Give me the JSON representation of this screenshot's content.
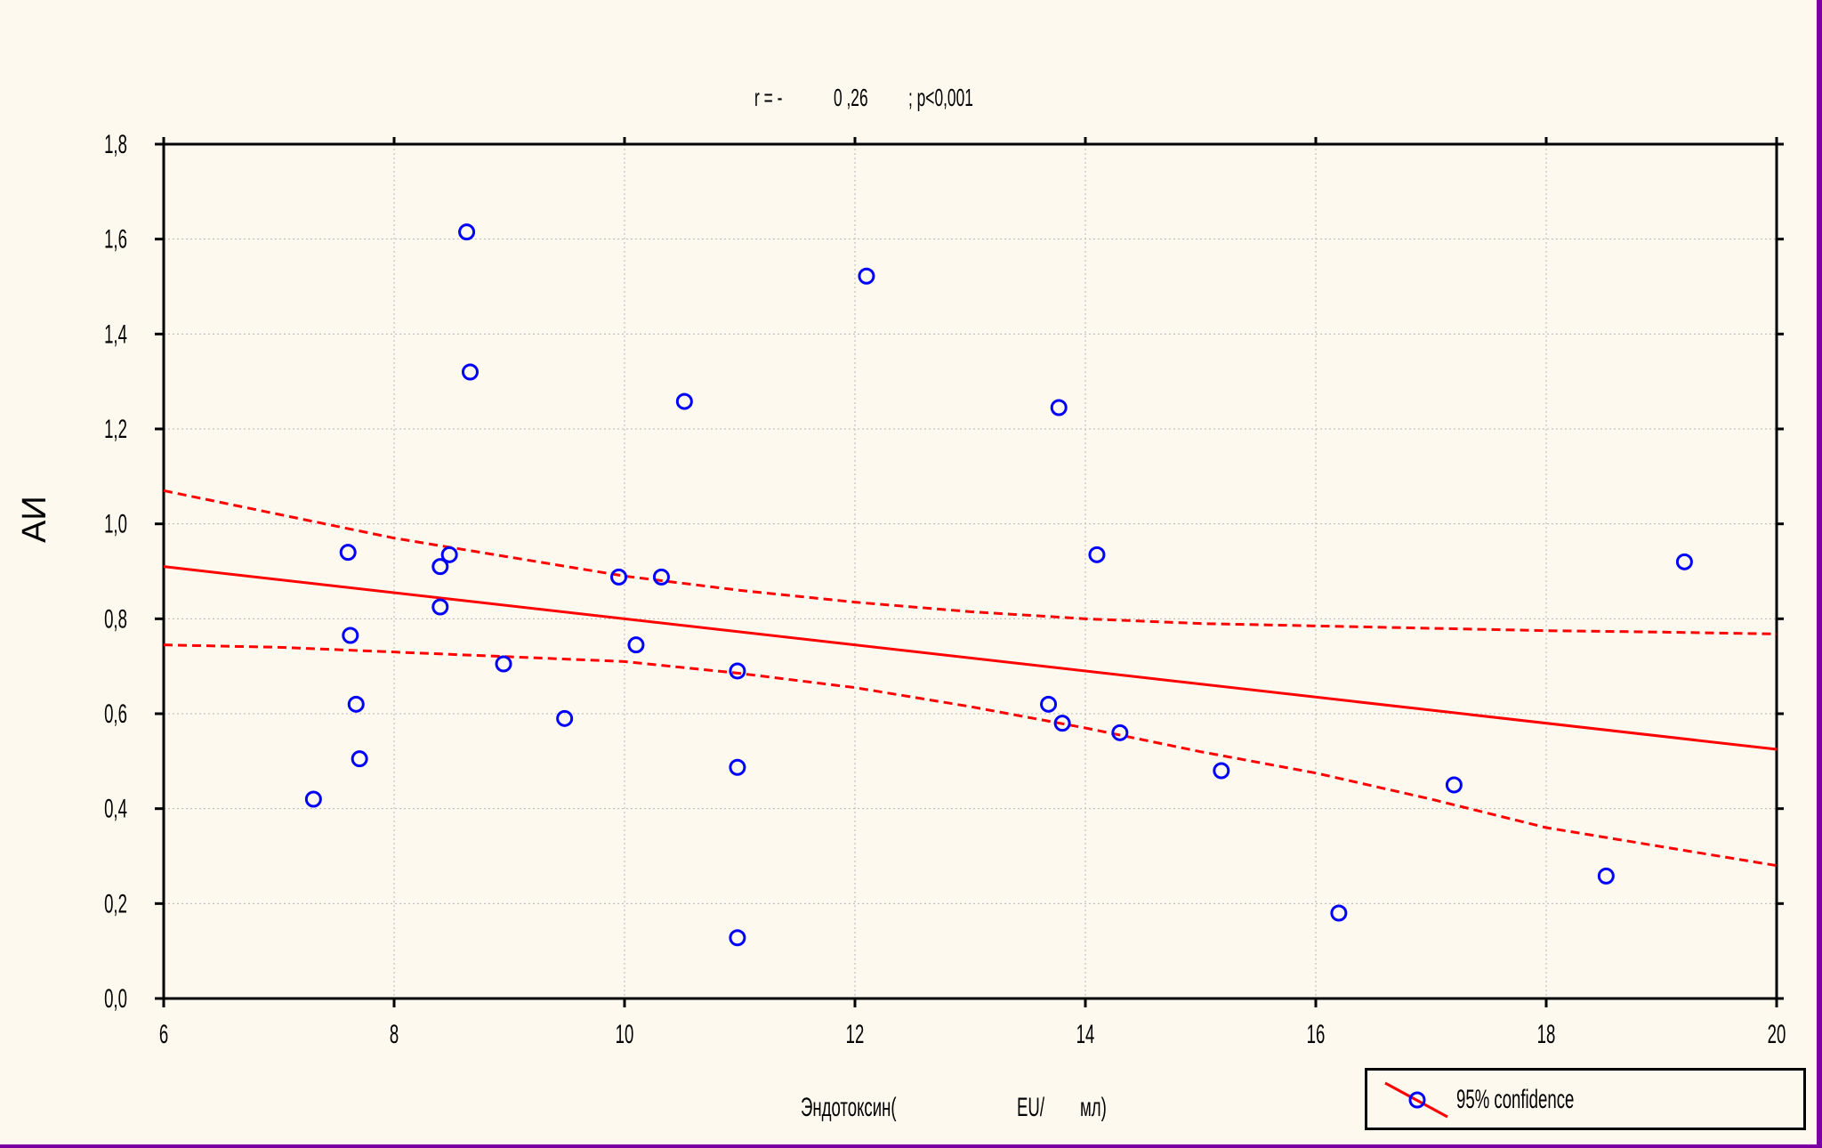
{
  "chart_data": {
    "type": "scatter",
    "title_parts": [
      "r = -",
      "0 ,26",
      "; p<0,001"
    ],
    "xlabel_parts": [
      "Эндотоксин(",
      "EU/",
      "мл)"
    ],
    "ylabel": "АИ",
    "xlim": [
      6,
      20
    ],
    "ylim": [
      0.0,
      1.8
    ],
    "x_ticks": [
      6,
      8,
      10,
      12,
      14,
      16,
      18,
      20
    ],
    "x_tick_labels": [
      "6",
      "8",
      "10",
      "12",
      "14",
      "16",
      "18",
      "20"
    ],
    "y_ticks": [
      0.0,
      0.2,
      0.4,
      0.6,
      0.8,
      1.0,
      1.2,
      1.4,
      1.6,
      1.8
    ],
    "y_tick_labels": [
      "0,0",
      "0,2",
      "0,4",
      "0,6",
      "0,8",
      "1,0",
      "1,2",
      "1,4",
      "1,6",
      "1,8"
    ],
    "grid": true,
    "legend_position": "bottom-right",
    "legend": "95% confidence",
    "colors": {
      "points": "#0000ff",
      "fit": "#ff0000",
      "background": "#fdf9ee",
      "frame": "#7a00a0"
    },
    "points": [
      {
        "x": 7.3,
        "y": 0.42
      },
      {
        "x": 7.6,
        "y": 0.94
      },
      {
        "x": 7.62,
        "y": 0.765
      },
      {
        "x": 7.67,
        "y": 0.62
      },
      {
        "x": 7.7,
        "y": 0.505
      },
      {
        "x": 8.4,
        "y": 0.91
      },
      {
        "x": 8.4,
        "y": 0.825
      },
      {
        "x": 8.48,
        "y": 0.935
      },
      {
        "x": 8.63,
        "y": 1.615
      },
      {
        "x": 8.66,
        "y": 1.32
      },
      {
        "x": 8.95,
        "y": 0.705
      },
      {
        "x": 9.48,
        "y": 0.59
      },
      {
        "x": 9.95,
        "y": 0.888
      },
      {
        "x": 10.1,
        "y": 0.745
      },
      {
        "x": 10.32,
        "y": 0.888
      },
      {
        "x": 10.52,
        "y": 1.258
      },
      {
        "x": 10.98,
        "y": 0.69
      },
      {
        "x": 10.98,
        "y": 0.487
      },
      {
        "x": 10.98,
        "y": 0.128
      },
      {
        "x": 12.1,
        "y": 1.522
      },
      {
        "x": 13.68,
        "y": 0.62
      },
      {
        "x": 13.77,
        "y": 1.245
      },
      {
        "x": 13.8,
        "y": 0.58
      },
      {
        "x": 14.1,
        "y": 0.935
      },
      {
        "x": 14.3,
        "y": 0.56
      },
      {
        "x": 15.18,
        "y": 0.48
      },
      {
        "x": 16.2,
        "y": 0.18
      },
      {
        "x": 17.2,
        "y": 0.45
      },
      {
        "x": 18.52,
        "y": 0.258
      },
      {
        "x": 19.2,
        "y": 0.92
      }
    ],
    "fit_line": {
      "x": [
        6,
        20
      ],
      "y": [
        0.91,
        0.525
      ]
    },
    "confidence_upper": {
      "x": [
        6,
        7,
        8,
        9,
        10,
        11,
        12,
        13,
        14,
        15,
        16,
        17,
        18,
        19,
        20
      ],
      "y": [
        1.07,
        1.02,
        0.97,
        0.93,
        0.89,
        0.86,
        0.835,
        0.815,
        0.8,
        0.79,
        0.785,
        0.78,
        0.775,
        0.772,
        0.768
      ]
    },
    "confidence_lower": {
      "x": [
        6,
        7,
        8,
        9,
        10,
        11,
        12,
        13,
        14,
        15,
        16,
        17,
        18,
        19,
        20
      ],
      "y": [
        0.745,
        0.74,
        0.73,
        0.72,
        0.71,
        0.685,
        0.655,
        0.615,
        0.57,
        0.52,
        0.475,
        0.42,
        0.36,
        0.32,
        0.28
      ]
    }
  }
}
